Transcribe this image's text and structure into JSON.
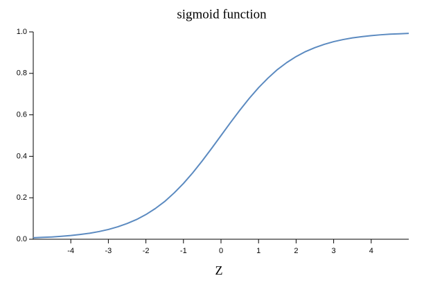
{
  "chart_data": {
    "type": "line",
    "title": "sigmoid function",
    "x_label": "Z",
    "x": [
      -5,
      -4.75,
      -4.5,
      -4.25,
      -4,
      -3.75,
      -3.5,
      -3.25,
      -3,
      -2.75,
      -2.5,
      -2.25,
      -2,
      -1.75,
      -1.5,
      -1.25,
      -1,
      -0.75,
      -0.5,
      -0.25,
      0,
      0.25,
      0.5,
      0.75,
      1,
      1.25,
      1.5,
      1.75,
      2,
      2.25,
      2.5,
      2.75,
      3,
      3.25,
      3.5,
      3.75,
      4,
      4.25,
      4.5,
      4.75,
      5
    ],
    "values": [
      0.007,
      0.009,
      0.011,
      0.014,
      0.018,
      0.023,
      0.029,
      0.037,
      0.047,
      0.06,
      0.076,
      0.095,
      0.119,
      0.148,
      0.182,
      0.223,
      0.269,
      0.321,
      0.378,
      0.438,
      0.5,
      0.562,
      0.622,
      0.679,
      0.731,
      0.777,
      0.818,
      0.852,
      0.881,
      0.905,
      0.924,
      0.94,
      0.953,
      0.963,
      0.971,
      0.977,
      0.982,
      0.986,
      0.989,
      0.991,
      0.993
    ],
    "color": "#5b8ac0",
    "xlim": [
      -5,
      5
    ],
    "xticks": [
      -4,
      -3,
      -2,
      -1,
      0,
      1,
      2,
      3,
      4
    ],
    "ylim": [
      0,
      1
    ],
    "yticks": [
      {
        "value": 0,
        "label": "0.0"
      },
      0.2,
      0.4,
      0.6,
      0.8,
      {
        "value": 1,
        "label": "1.0"
      }
    ],
    "grid": false
  }
}
